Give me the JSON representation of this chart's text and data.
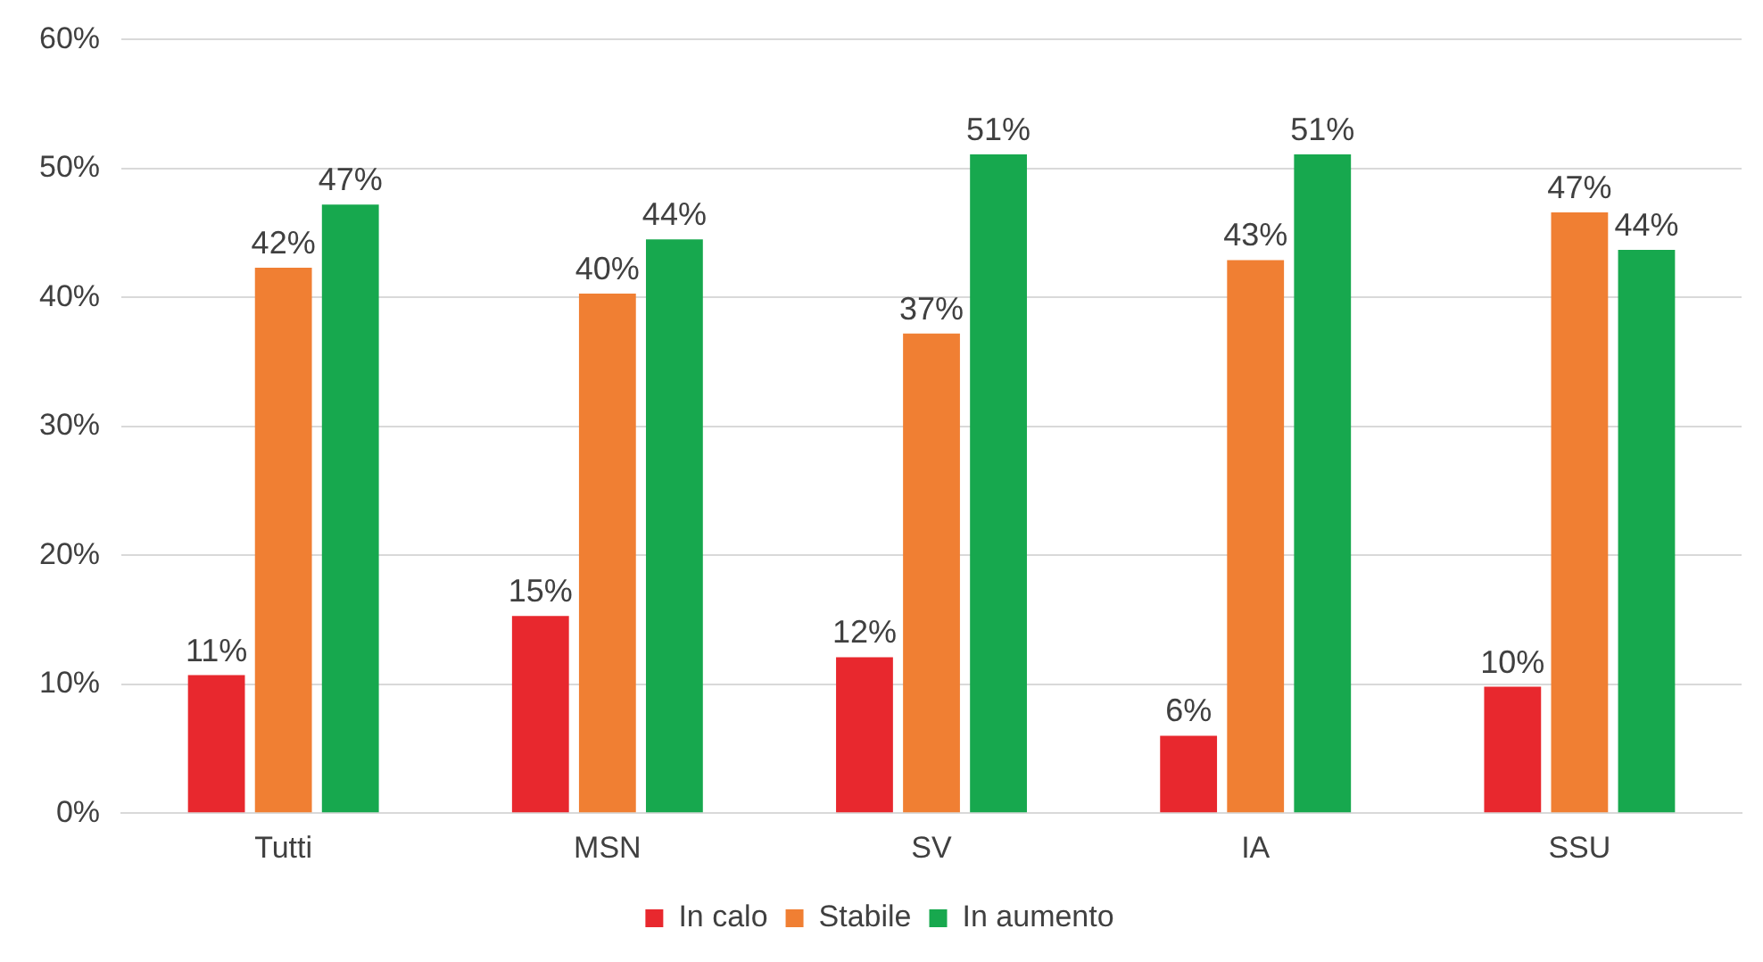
{
  "chart_data": {
    "type": "bar",
    "categories": [
      "Tutti",
      "MSN",
      "SV",
      "IA",
      "SSU"
    ],
    "series": [
      {
        "name": "In calo",
        "color": "#e8282e",
        "values": [
          10.7,
          15.3,
          12.1,
          6,
          9.8
        ],
        "value_labels": [
          "11%",
          "15%",
          "12%",
          "6%",
          "10%"
        ]
      },
      {
        "name": "Stabile",
        "color": "#f07f33",
        "values": [
          42.3,
          40.3,
          37.2,
          42.9,
          46.6
        ],
        "value_labels": [
          "42%",
          "40%",
          "37%",
          "43%",
          "47%"
        ]
      },
      {
        "name": "In aumento",
        "color": "#17a84e",
        "values": [
          47.2,
          44.5,
          51.1,
          51.1,
          43.7
        ],
        "value_labels": [
          "47%",
          "44%",
          "51%",
          "51%",
          "44%"
        ]
      }
    ],
    "ylim": [
      0,
      60
    ],
    "yticks": [
      {
        "value": 0,
        "label": "0%"
      },
      {
        "value": 10,
        "label": "10%"
      },
      {
        "value": 20,
        "label": "20%"
      },
      {
        "value": 30,
        "label": "30%"
      },
      {
        "value": 40,
        "label": "40%"
      },
      {
        "value": 50,
        "label": "50%"
      },
      {
        "value": 60,
        "label": "60%"
      }
    ],
    "grid": "y",
    "legend": "bottom"
  }
}
